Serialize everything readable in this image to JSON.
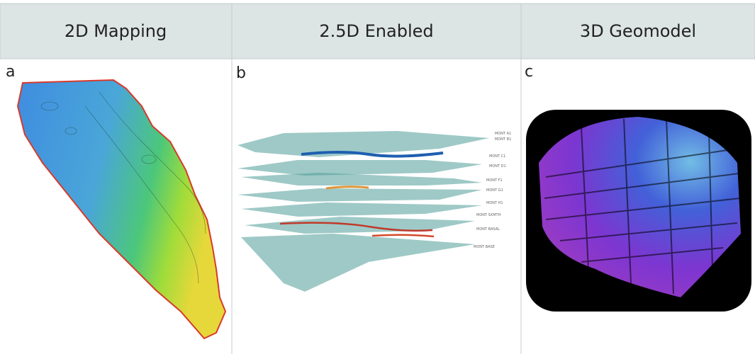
{
  "header": {
    "columns": [
      "2D Mapping",
      "2.5D Enabled",
      "3D Geomodel"
    ]
  },
  "panels": [
    {
      "label": "a"
    },
    {
      "label": "b",
      "layer_labels": [
        "MONT A1",
        "MONT B1",
        "MONT C1",
        "MONT D1",
        "MONT F1",
        "MONT G1",
        "MONT H1",
        "MONT SXMTH",
        "MONT BASAL",
        "MONT BASE"
      ]
    },
    {
      "label": "c"
    }
  ]
}
